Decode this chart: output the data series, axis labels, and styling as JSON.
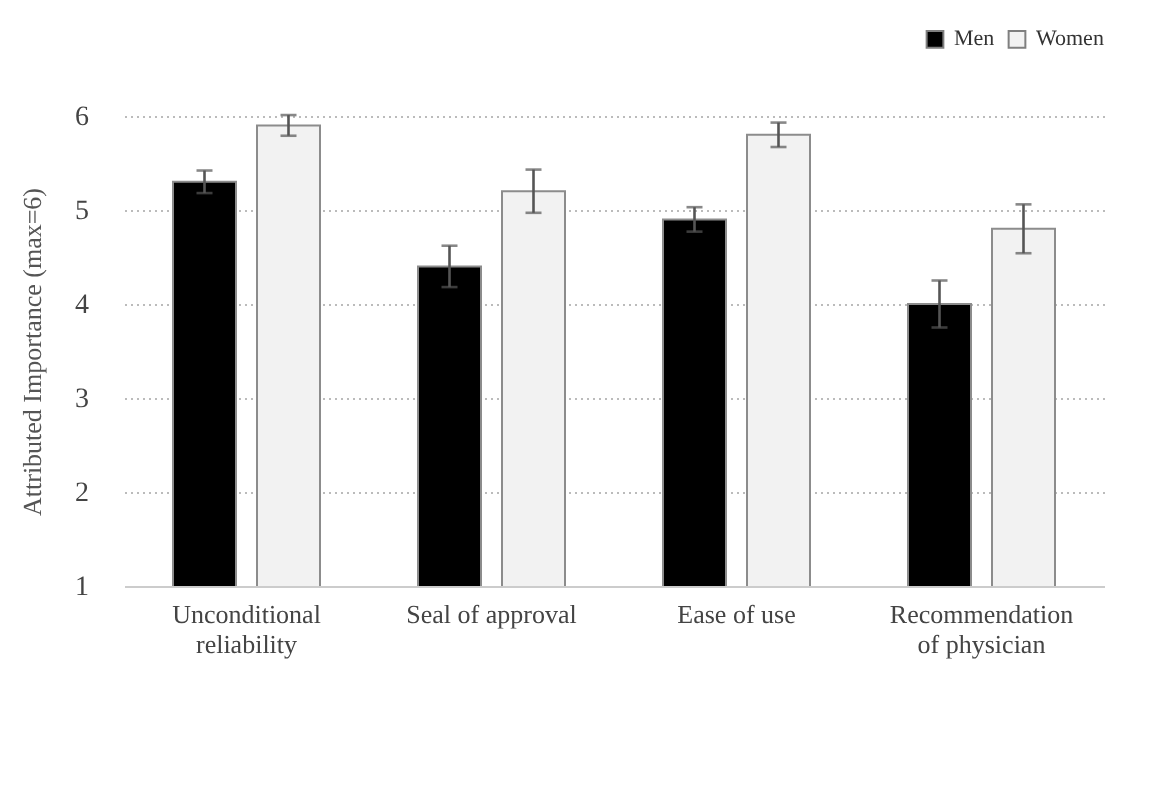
{
  "chart_data": {
    "type": "bar",
    "ylabel": "Attributed Importance (max=6)",
    "categories": [
      "Unconditional reliability",
      "Seal of approval",
      "Ease of use",
      "Recommendation of physician"
    ],
    "series": [
      {
        "name": "Men",
        "color": "#000000",
        "values": [
          5.3,
          4.4,
          4.9,
          4.0
        ],
        "errors": [
          0.12,
          0.22,
          0.13,
          0.25
        ]
      },
      {
        "name": "Women",
        "color": "#f2f2f2",
        "values": [
          5.9,
          5.2,
          5.8,
          4.8
        ],
        "errors": [
          0.11,
          0.23,
          0.13,
          0.26
        ]
      }
    ],
    "ylim": [
      1,
      6
    ],
    "yticks": [
      1,
      2,
      3,
      4,
      5,
      6
    ],
    "grid": "y",
    "legend": "top right"
  }
}
